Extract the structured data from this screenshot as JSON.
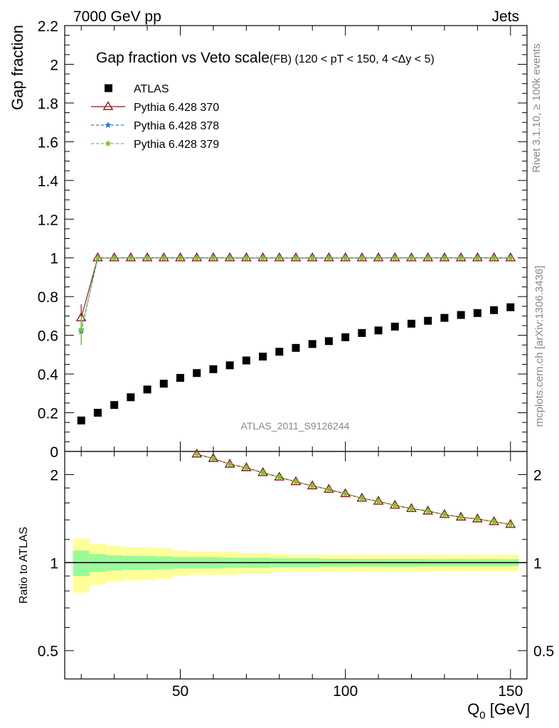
{
  "header": {
    "left": "7000 GeV pp",
    "right": "Jets"
  },
  "side_labels": {
    "rivet": "Rivet 3.1.10, ≥ 100k events",
    "mcplots": "mcplots.cern.ch [arXiv:1306.3436]"
  },
  "chart_data": [
    {
      "type": "scatter",
      "title": "Gap fraction vs Veto scale",
      "subtitle": "(FB) (120 < pT < 150, 4 <Δy < 5)",
      "ylabel": "Gap fraction",
      "ylim": [
        0,
        2.2
      ],
      "yticks": [
        0,
        0.2,
        0.4,
        0.6,
        0.8,
        1,
        1.2,
        1.4,
        1.6,
        1.8,
        2,
        2.2
      ],
      "ytick_labels": [
        "0",
        "0.2",
        "0.4",
        "0.6",
        "0.8",
        "1",
        "1.2",
        "1.4",
        "1.6",
        "1.8",
        "2",
        "2.2"
      ],
      "xlim": [
        15,
        155
      ],
      "watermark": "ATLAS_2011_S9126244",
      "legend_position": "top-left",
      "x": [
        20,
        25,
        30,
        35,
        40,
        45,
        50,
        55,
        60,
        65,
        70,
        75,
        80,
        85,
        90,
        95,
        100,
        105,
        110,
        115,
        120,
        125,
        130,
        135,
        140,
        145,
        150
      ],
      "series": [
        {
          "name": "ATLAS",
          "color": "#000000",
          "marker": "square",
          "values": [
            0.16,
            0.2,
            0.24,
            0.28,
            0.32,
            0.35,
            0.38,
            0.405,
            0.425,
            0.445,
            0.47,
            0.49,
            0.515,
            0.535,
            0.555,
            0.57,
            0.59,
            0.612,
            0.625,
            0.645,
            0.66,
            0.675,
            0.69,
            0.705,
            0.715,
            0.73,
            0.745
          ]
        },
        {
          "name": "Pythia 6.428 370",
          "color": "#8b1a1a",
          "marker": "triangle",
          "values": [
            0.69,
            1,
            1,
            1,
            1,
            1,
            1,
            1,
            1,
            1,
            1,
            1,
            1,
            1,
            1,
            1,
            1,
            1,
            1,
            1,
            1,
            1,
            1,
            1,
            1,
            1,
            1
          ]
        },
        {
          "name": "Pythia 6.428 378",
          "color": "#2a7fd4",
          "marker": "star",
          "values": [
            0.62,
            1,
            1,
            1,
            1,
            1,
            1,
            1,
            1,
            1,
            1,
            1,
            1,
            1,
            1,
            1,
            1,
            1,
            1,
            1,
            1,
            1,
            1,
            1,
            1,
            1,
            1
          ]
        },
        {
          "name": "Pythia 6.428 379",
          "color": "#7cc520",
          "marker": "star",
          "values": [
            0.63,
            1,
            1,
            1,
            1,
            1,
            1,
            1,
            1,
            1,
            1,
            1,
            1,
            1,
            1,
            1,
            1,
            1,
            1,
            1,
            1,
            1,
            1,
            1,
            1,
            1,
            1
          ]
        }
      ]
    },
    {
      "type": "line",
      "ylabel": "Ratio to ATLAS",
      "xlabel": "Q",
      "xlabel_sub": "0",
      "xlabel_unit": " [GeV]",
      "xlim": [
        15,
        155
      ],
      "xticks": [
        50,
        100,
        150
      ],
      "xtick_labels": [
        "50",
        "100",
        "150"
      ],
      "ylim": [
        0.4,
        2.4
      ],
      "log_y": true,
      "yticks": [
        0.5,
        1,
        2
      ],
      "ytick_labels": [
        "0.5",
        "1",
        "2"
      ],
      "reference_line": 1,
      "x": [
        55,
        60,
        65,
        70,
        75,
        80,
        85,
        90,
        95,
        100,
        105,
        110,
        115,
        120,
        125,
        130,
        135,
        140,
        145,
        150
      ],
      "ratio_values": [
        2.35,
        2.27,
        2.17,
        2.11,
        2.03,
        1.96,
        1.89,
        1.83,
        1.78,
        1.72,
        1.66,
        1.62,
        1.57,
        1.53,
        1.5,
        1.46,
        1.43,
        1.41,
        1.38,
        1.35
      ],
      "bands": {
        "x_edges": [
          17.5,
          22.5,
          27.5,
          32.5,
          37.5,
          42.5,
          47.5,
          52.5,
          57.5,
          62.5,
          67.5,
          72.5,
          77.5,
          82.5,
          87.5,
          92.5,
          97.5,
          102.5,
          107.5,
          112.5,
          117.5,
          122.5,
          127.5,
          132.5,
          137.5,
          142.5,
          147.5,
          152.5
        ],
        "stat": [
          0.1,
          0.07,
          0.06,
          0.055,
          0.055,
          0.05,
          0.045,
          0.045,
          0.045,
          0.04,
          0.04,
          0.04,
          0.035,
          0.035,
          0.035,
          0.03,
          0.03,
          0.03,
          0.03,
          0.03,
          0.03,
          0.028,
          0.028,
          0.028,
          0.028,
          0.028,
          0.028
        ],
        "total": [
          0.21,
          0.16,
          0.14,
          0.13,
          0.13,
          0.12,
          0.1,
          0.09,
          0.09,
          0.09,
          0.08,
          0.08,
          0.07,
          0.065,
          0.065,
          0.065,
          0.065,
          0.065,
          0.065,
          0.065,
          0.065,
          0.065,
          0.065,
          0.065,
          0.065,
          0.065,
          0.065
        ],
        "stat_color": "#98fb98",
        "total_color": "#ffff99"
      }
    }
  ]
}
